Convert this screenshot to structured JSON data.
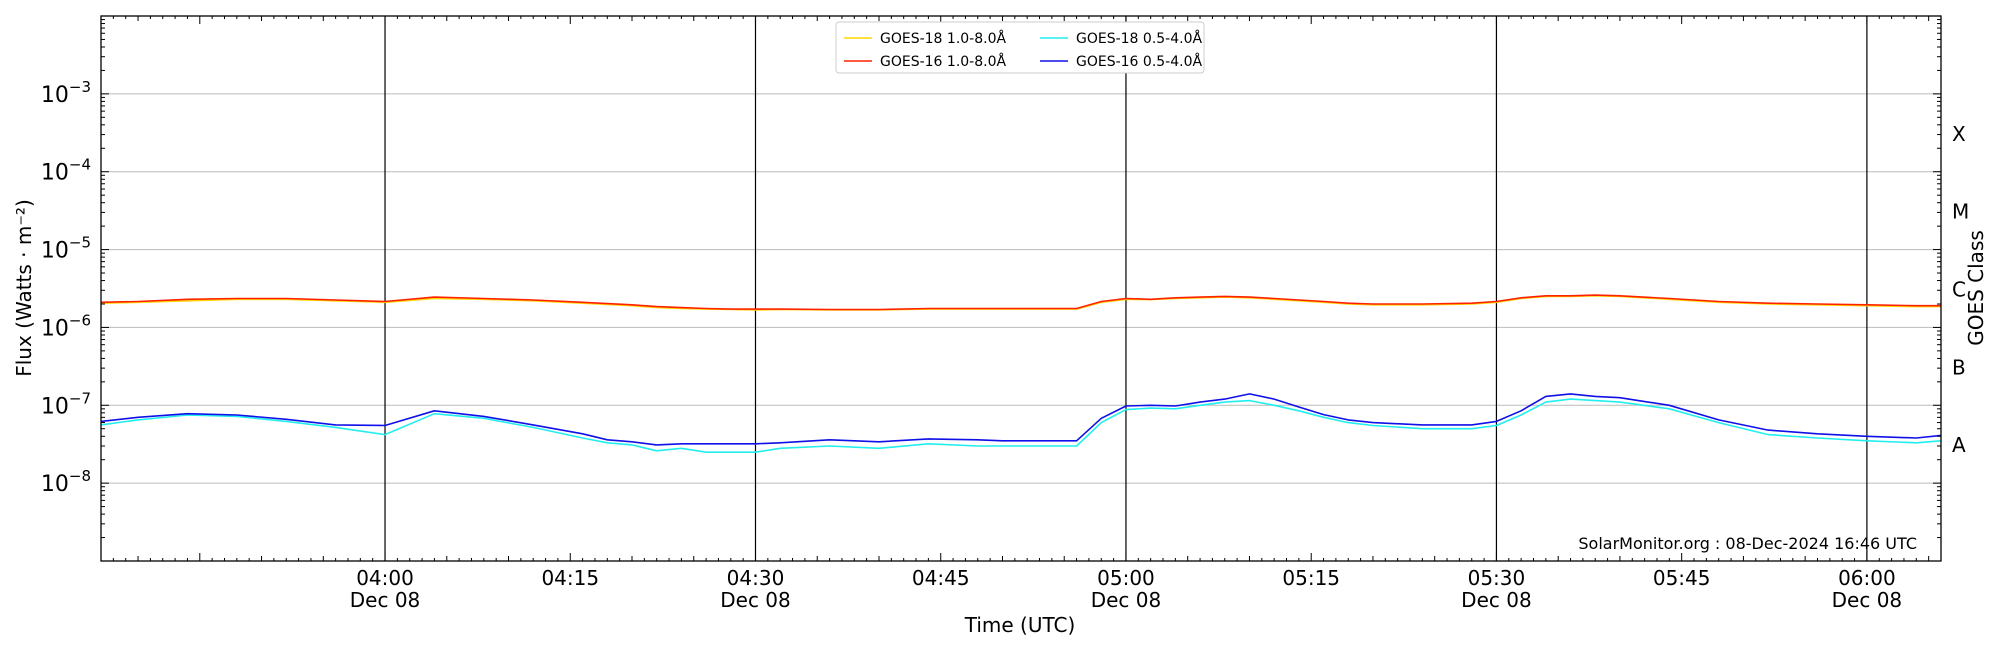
{
  "chart_data": {
    "type": "line",
    "xlabel": "Time (UTC)",
    "ylabel": "Flux (Watts · m⁻²)",
    "ylabel_right": "GOES Class",
    "annotation": "SolarMonitor.org : 08-Dec-2024 16:46 UTC",
    "x_unit": "minutes after 00:00 UTC, 08-Dec-2024",
    "xlim": [
      217,
      366
    ],
    "ylim_log10": [
      -9,
      -2
    ],
    "yscale": "log",
    "grid": "horizontal",
    "legend_position": "top-center",
    "x_ticks": [
      {
        "value": 240,
        "label": "04:00",
        "sublabel": "Dec 08"
      },
      {
        "value": 255,
        "label": "04:15",
        "sublabel": ""
      },
      {
        "value": 270,
        "label": "04:30",
        "sublabel": "Dec 08"
      },
      {
        "value": 285,
        "label": "04:45",
        "sublabel": ""
      },
      {
        "value": 300,
        "label": "05:00",
        "sublabel": "Dec 08"
      },
      {
        "value": 315,
        "label": "05:15",
        "sublabel": ""
      },
      {
        "value": 330,
        "label": "05:30",
        "sublabel": "Dec 08"
      },
      {
        "value": 345,
        "label": "05:45",
        "sublabel": ""
      },
      {
        "value": 360,
        "label": "06:00",
        "sublabel": "Dec 08"
      }
    ],
    "vlines": [
      240,
      270,
      300,
      330,
      360
    ],
    "y_ticks": [
      {
        "exp": -3,
        "base": "10",
        "power": "−3"
      },
      {
        "exp": -4,
        "base": "10",
        "power": "−4"
      },
      {
        "exp": -5,
        "base": "10",
        "power": "−5"
      },
      {
        "exp": -6,
        "base": "10",
        "power": "−6"
      },
      {
        "exp": -7,
        "base": "10",
        "power": "−7"
      },
      {
        "exp": -8,
        "base": "10",
        "power": "−8"
      }
    ],
    "goes_classes": [
      {
        "label": "X",
        "exp": -3.5
      },
      {
        "label": "M",
        "exp": -4.5
      },
      {
        "label": "C",
        "exp": -5.5
      },
      {
        "label": "B",
        "exp": -6.5
      },
      {
        "label": "A",
        "exp": -7.5
      }
    ],
    "series": [
      {
        "name": "GOES-18 1.0-8.0Å",
        "color": "#ffd700",
        "x": [
          217,
          220,
          224,
          228,
          232,
          236,
          240,
          244,
          248,
          252,
          256,
          260,
          262,
          264,
          266,
          268,
          270,
          272,
          276,
          280,
          284,
          288,
          292,
          296,
          298,
          300,
          302,
          304,
          306,
          308,
          310,
          312,
          314,
          316,
          318,
          320,
          324,
          328,
          330,
          332,
          334,
          336,
          338,
          340,
          344,
          348,
          352,
          356,
          360,
          364,
          366
        ],
        "y": [
          2.05e-06,
          2.1e-06,
          2.2e-06,
          2.3e-06,
          2.3e-06,
          2.2e-06,
          2.1e-06,
          2.35e-06,
          2.3e-06,
          2.2e-06,
          2.05e-06,
          1.9e-06,
          1.8e-06,
          1.75e-06,
          1.72e-06,
          1.7e-06,
          1.68e-06,
          1.7e-06,
          1.68e-06,
          1.68e-06,
          1.72e-06,
          1.72e-06,
          1.72e-06,
          1.72e-06,
          2.1e-06,
          2.3e-06,
          2.28e-06,
          2.35e-06,
          2.4e-06,
          2.45e-06,
          2.4e-06,
          2.3e-06,
          2.2e-06,
          2.1e-06,
          2e-06,
          1.95e-06,
          1.95e-06,
          2e-06,
          2.1e-06,
          2.35e-06,
          2.5e-06,
          2.5e-06,
          2.55e-06,
          2.5e-06,
          2.3e-06,
          2.1e-06,
          2e-06,
          1.95e-06,
          1.9e-06,
          1.85e-06,
          1.85e-06
        ]
      },
      {
        "name": "GOES-16 1.0-8.0Å",
        "color": "#ff2200",
        "x": [
          217,
          220,
          224,
          228,
          232,
          236,
          240,
          244,
          248,
          252,
          256,
          260,
          262,
          264,
          266,
          268,
          270,
          272,
          276,
          280,
          284,
          288,
          292,
          296,
          298,
          300,
          302,
          304,
          306,
          308,
          310,
          312,
          314,
          316,
          318,
          320,
          324,
          328,
          330,
          332,
          334,
          336,
          338,
          340,
          344,
          348,
          352,
          356,
          360,
          364,
          366
        ],
        "y": [
          2.1e-06,
          2.15e-06,
          2.3e-06,
          2.35e-06,
          2.35e-06,
          2.25e-06,
          2.15e-06,
          2.45e-06,
          2.35e-06,
          2.25e-06,
          2.1e-06,
          1.95e-06,
          1.85e-06,
          1.8e-06,
          1.75e-06,
          1.72e-06,
          1.72e-06,
          1.72e-06,
          1.7e-06,
          1.7e-06,
          1.75e-06,
          1.75e-06,
          1.75e-06,
          1.75e-06,
          2.15e-06,
          2.35e-06,
          2.3e-06,
          2.4e-06,
          2.45e-06,
          2.5e-06,
          2.45e-06,
          2.35e-06,
          2.25e-06,
          2.15e-06,
          2.05e-06,
          2e-06,
          2e-06,
          2.05e-06,
          2.15e-06,
          2.4e-06,
          2.55e-06,
          2.55e-06,
          2.6e-06,
          2.55e-06,
          2.35e-06,
          2.15e-06,
          2.05e-06,
          2e-06,
          1.95e-06,
          1.9e-06,
          1.9e-06
        ]
      },
      {
        "name": "GOES-18 0.5-4.0Å",
        "color": "#22eeee",
        "x": [
          217,
          220,
          224,
          228,
          232,
          236,
          240,
          244,
          248,
          252,
          256,
          258,
          260,
          262,
          264,
          266,
          268,
          270,
          272,
          276,
          280,
          284,
          288,
          290,
          292,
          294,
          296,
          298,
          300,
          302,
          304,
          306,
          308,
          310,
          312,
          314,
          316,
          318,
          320,
          324,
          328,
          330,
          332,
          334,
          336,
          338,
          340,
          344,
          348,
          352,
          356,
          360,
          364,
          366
        ],
        "y": [
          5.6e-08,
          6.5e-08,
          7.5e-08,
          7.2e-08,
          6.2e-08,
          5.2e-08,
          4.2e-08,
          7.8e-08,
          6.8e-08,
          5.2e-08,
          3.8e-08,
          3.3e-08,
          3.1e-08,
          2.6e-08,
          2.8e-08,
          2.5e-08,
          2.5e-08,
          2.5e-08,
          2.8e-08,
          3e-08,
          2.8e-08,
          3.2e-08,
          3e-08,
          3e-08,
          3e-08,
          3e-08,
          3e-08,
          6e-08,
          8.8e-08,
          9.2e-08,
          9e-08,
          1e-07,
          1.1e-07,
          1.15e-07,
          1e-07,
          8.5e-08,
          7e-08,
          6e-08,
          5.5e-08,
          5e-08,
          5e-08,
          5.5e-08,
          7.5e-08,
          1.1e-07,
          1.2e-07,
          1.15e-07,
          1.1e-07,
          9e-08,
          6e-08,
          4.2e-08,
          3.8e-08,
          3.5e-08,
          3.3e-08,
          3.5e-08
        ]
      },
      {
        "name": "GOES-16 0.5-4.0Å",
        "color": "#1010e8",
        "x": [
          217,
          220,
          224,
          228,
          232,
          236,
          240,
          244,
          248,
          252,
          256,
          258,
          260,
          262,
          264,
          266,
          268,
          270,
          272,
          276,
          280,
          284,
          288,
          290,
          292,
          294,
          296,
          298,
          300,
          302,
          304,
          306,
          308,
          310,
          312,
          314,
          316,
          318,
          320,
          324,
          328,
          330,
          332,
          334,
          336,
          338,
          340,
          344,
          348,
          352,
          356,
          360,
          364,
          366
        ],
        "y": [
          6.2e-08,
          7e-08,
          7.8e-08,
          7.5e-08,
          6.6e-08,
          5.6e-08,
          5.5e-08,
          8.5e-08,
          7.2e-08,
          5.6e-08,
          4.3e-08,
          3.6e-08,
          3.4e-08,
          3.1e-08,
          3.2e-08,
          3.2e-08,
          3.2e-08,
          3.2e-08,
          3.3e-08,
          3.6e-08,
          3.4e-08,
          3.7e-08,
          3.6e-08,
          3.5e-08,
          3.5e-08,
          3.5e-08,
          3.5e-08,
          6.8e-08,
          9.8e-08,
          1e-07,
          9.8e-08,
          1.1e-07,
          1.2e-07,
          1.4e-07,
          1.2e-07,
          9.5e-08,
          7.6e-08,
          6.5e-08,
          6e-08,
          5.6e-08,
          5.6e-08,
          6.2e-08,
          8.5e-08,
          1.3e-07,
          1.4e-07,
          1.3e-07,
          1.25e-07,
          1e-07,
          6.5e-08,
          4.8e-08,
          4.3e-08,
          4e-08,
          3.8e-08,
          4.1e-08
        ]
      }
    ]
  }
}
